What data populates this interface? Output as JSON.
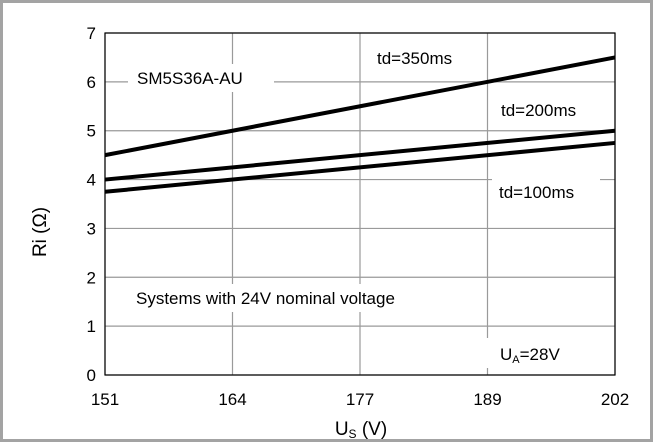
{
  "chart_data": {
    "type": "line",
    "xlabel": "U",
    "xlabel_sub": "S",
    "xlabel_unit": "(V)",
    "ylabel": "Ri (Ω)",
    "x_ticks": [
      "151",
      "164",
      "177",
      "189",
      "202"
    ],
    "y_ticks": [
      "0",
      "1",
      "2",
      "3",
      "4",
      "5",
      "6",
      "7"
    ],
    "xlim": [
      151,
      202
    ],
    "ylim": [
      0,
      7
    ],
    "grid": true,
    "series": [
      {
        "name": "td=350ms",
        "x": [
          151,
          202
        ],
        "y": [
          4.5,
          6.5
        ]
      },
      {
        "name": "td=200ms",
        "x": [
          151,
          202
        ],
        "y": [
          4.0,
          5.0
        ]
      },
      {
        "name": "td=100ms",
        "x": [
          151,
          202
        ],
        "y": [
          3.75,
          4.75
        ]
      }
    ],
    "annotations": {
      "model": "SM5S36A-AU",
      "system": "Systems with 24V nominal voltage",
      "ua_prefix": "U",
      "ua_sub": "A",
      "ua_suffix": "=28V"
    }
  },
  "colors": {
    "line": "#000000",
    "grid": "#9a9a9a",
    "frame": "#a3a3a3"
  }
}
